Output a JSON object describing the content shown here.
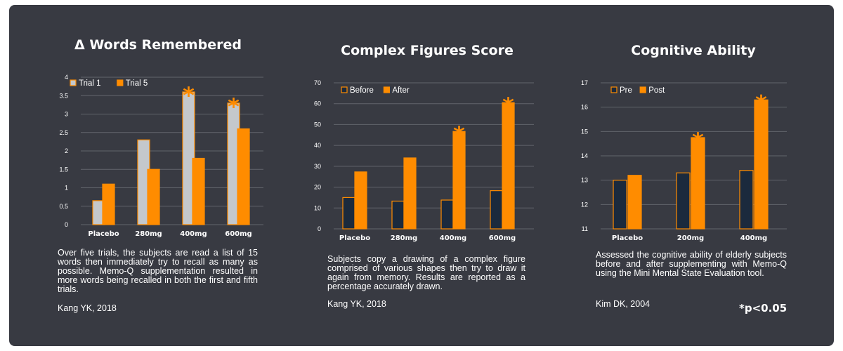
{
  "colors": {
    "trial1": "#c4c8cc",
    "primary": "#ff8c00",
    "before": "#1b2a3d",
    "edge": "#ff8c00",
    "grid": "#62656c",
    "star": "#ff8c00"
  },
  "footnote": "*p<0.05",
  "chart_data": [
    {
      "type": "bar",
      "title": "Δ Words Remembered",
      "categories": [
        "Placebo",
        "280mg",
        "400mg",
        "600mg"
      ],
      "series": [
        {
          "name": "Trial 1",
          "values": [
            0.65,
            2.3,
            3.6,
            3.3
          ]
        },
        {
          "name": "Trial 5",
          "values": [
            1.1,
            1.5,
            1.8,
            2.6
          ]
        }
      ],
      "ylim": [
        0,
        4
      ],
      "yticks": [
        "0",
        "0.5",
        "1",
        "1.5",
        "2",
        "2.5",
        "3",
        "3.5",
        "4"
      ],
      "grid": true,
      "legend": "top-left",
      "significant": [
        false,
        false,
        true,
        true
      ],
      "star_symbol": "*",
      "description": "Over five trials, the subjects are read a list of 15 words then immediately try to recall as many as possible. Memo-Q supplementation resulted in more words being recalled in both the first and fifth trials.",
      "citation": "Kang YK, 2018"
    },
    {
      "type": "bar",
      "title": "Complex Figures Score",
      "categories": [
        "Placebo",
        "280mg",
        "400mg",
        "600mg"
      ],
      "series": [
        {
          "name": "Before",
          "values": [
            15,
            13.3,
            13.8,
            18.3
          ]
        },
        {
          "name": "After",
          "values": [
            27.3,
            34,
            46.7,
            60.5
          ]
        }
      ],
      "ylim": [
        0,
        70
      ],
      "yticks": [
        "0",
        "10",
        "20",
        "30",
        "40",
        "50",
        "60",
        "70"
      ],
      "grid": true,
      "legend": "top-left",
      "significant": [
        false,
        false,
        true,
        true
      ],
      "star_symbol": "*",
      "description": "Subjects copy a drawing of a complex figure comprised of various shapes then try to draw it again from memory. Results are reported as a percentage accurately drawn.",
      "citation": "Kang YK, 2018"
    },
    {
      "type": "bar",
      "title": "Cognitive Ability",
      "categories": [
        "Placebo",
        "200mg",
        "400mg"
      ],
      "series": [
        {
          "name": "Pre",
          "values": [
            13.0,
            13.3,
            13.4
          ]
        },
        {
          "name": "Post",
          "values": [
            13.2,
            14.75,
            16.3
          ]
        }
      ],
      "ylim": [
        11,
        17
      ],
      "yticks": [
        "11",
        "12",
        "13",
        "14",
        "15",
        "16",
        "17"
      ],
      "grid": true,
      "legend": "top-left",
      "significant": [
        false,
        true,
        true
      ],
      "star_symbol": "*",
      "description": "Assessed the cognitive ability of elderly subjects before and after supplementing with Memo-Q using the Mini Mental State Evaluation tool.",
      "citation": "Kim DK, 2004"
    }
  ]
}
